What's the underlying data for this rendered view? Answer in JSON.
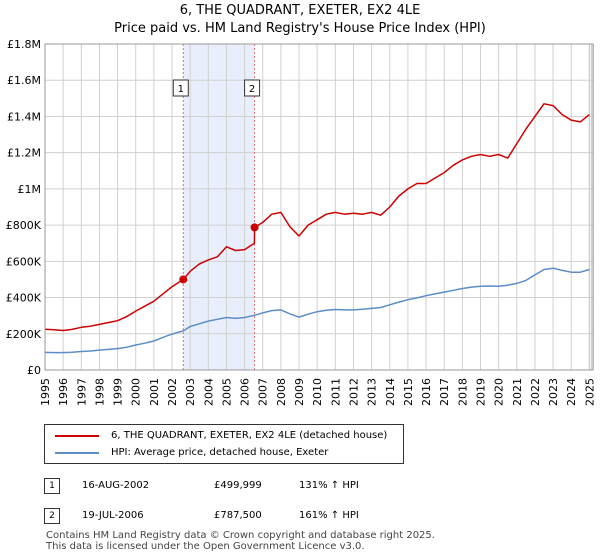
{
  "title_line1": "6, THE QUADRANT, EXETER, EX2 4LE",
  "title_line2": "Price paid vs. HM Land Registry's House Price Index (HPI)",
  "colors": {
    "property": "#cc0000",
    "hpi": "#5b8ec9",
    "shade": "#e8eefb",
    "grid": "#d0d0d0",
    "vline": "#e07070"
  },
  "chart_data": {
    "type": "line",
    "xlim": [
      1995,
      2025.2
    ],
    "ylim": [
      0,
      1800000
    ],
    "yticks": [
      0,
      200000,
      400000,
      600000,
      800000,
      1000000,
      1200000,
      1400000,
      1600000,
      1800000
    ],
    "ytick_labels": [
      "£0",
      "£200K",
      "£400K",
      "£600K",
      "£800K",
      "£1M",
      "£1.2M",
      "£1.4M",
      "£1.6M",
      "£1.8M"
    ],
    "xticks": [
      "1995",
      "1996",
      "1997",
      "1998",
      "1999",
      "2000",
      "2001",
      "2002",
      "2003",
      "2004",
      "2005",
      "2006",
      "2007",
      "2008",
      "2009",
      "2010",
      "2011",
      "2012",
      "2013",
      "2014",
      "2015",
      "2016",
      "2017",
      "2018",
      "2019",
      "2020",
      "2021",
      "2022",
      "2023",
      "2024",
      "2025"
    ],
    "shaded_region": [
      2002.62,
      2006.55
    ],
    "series": [
      {
        "name": "6, THE QUADRANT, EXETER, EX2 4LE (detached house)",
        "x": [
          1995,
          1995.5,
          1996,
          1996.5,
          1997,
          1997.5,
          1998,
          1998.5,
          1999,
          1999.5,
          2000,
          2000.5,
          2001,
          2001.5,
          2002,
          2002.62,
          2003,
          2003.5,
          2004,
          2004.5,
          2005,
          2005.5,
          2006,
          2006.54,
          2006.55,
          2007,
          2007.5,
          2008,
          2008.5,
          2009,
          2009.5,
          2010,
          2010.5,
          2011,
          2011.5,
          2012,
          2012.5,
          2013,
          2013.5,
          2014,
          2014.5,
          2015,
          2015.5,
          2016,
          2016.5,
          2017,
          2017.5,
          2018,
          2018.5,
          2019,
          2019.5,
          2020,
          2020.5,
          2021,
          2021.5,
          2022,
          2022.5,
          2023,
          2023.5,
          2024,
          2024.5,
          2025
        ],
        "values": [
          225000,
          222000,
          218000,
          224000,
          236000,
          242000,
          252000,
          262000,
          272000,
          295000,
          325000,
          352000,
          380000,
          420000,
          460000,
          499999,
          545000,
          585000,
          608000,
          625000,
          680000,
          660000,
          665000,
          700000,
          787500,
          815000,
          860000,
          870000,
          790000,
          740000,
          800000,
          830000,
          860000,
          870000,
          860000,
          865000,
          860000,
          870000,
          855000,
          900000,
          960000,
          1000000,
          1030000,
          1030000,
          1060000,
          1090000,
          1130000,
          1160000,
          1180000,
          1190000,
          1180000,
          1190000,
          1170000,
          1250000,
          1330000,
          1400000,
          1470000,
          1460000,
          1410000,
          1380000,
          1370000,
          1410000
        ]
      },
      {
        "name": "HPI: Average price, detached house, Exeter",
        "x": [
          1995,
          1995.5,
          1996,
          1996.5,
          1997,
          1997.5,
          1998,
          1998.5,
          1999,
          1999.5,
          2000,
          2000.5,
          2001,
          2001.5,
          2002,
          2002.62,
          2003,
          2003.5,
          2004,
          2004.5,
          2005,
          2005.5,
          2006,
          2006.55,
          2007,
          2007.5,
          2008,
          2008.5,
          2009,
          2009.5,
          2010,
          2010.5,
          2011,
          2011.5,
          2012,
          2012.5,
          2013,
          2013.5,
          2014,
          2014.5,
          2015,
          2015.5,
          2016,
          2016.5,
          2017,
          2017.5,
          2018,
          2018.5,
          2019,
          2019.5,
          2020,
          2020.5,
          2021,
          2021.5,
          2022,
          2022.5,
          2023,
          2023.5,
          2024,
          2024.5,
          2025
        ],
        "values": [
          97000,
          96000,
          96000,
          98000,
          102000,
          105000,
          110000,
          114000,
          118000,
          126000,
          138000,
          148000,
          160000,
          180000,
          198000,
          216000,
          240000,
          255000,
          270000,
          280000,
          290000,
          285000,
          290000,
          302000,
          315000,
          328000,
          332000,
          310000,
          292000,
          308000,
          322000,
          330000,
          334000,
          332000,
          332000,
          335000,
          340000,
          345000,
          360000,
          375000,
          388000,
          398000,
          410000,
          420000,
          430000,
          440000,
          450000,
          458000,
          462000,
          464000,
          462000,
          468000,
          478000,
          495000,
          525000,
          555000,
          562000,
          550000,
          540000,
          540000,
          555000
        ]
      }
    ],
    "markers": [
      {
        "label": "1",
        "x": 2002.62,
        "y": 499999
      },
      {
        "label": "2",
        "x": 2006.55,
        "y": 787500
      }
    ]
  },
  "legend": {
    "property_label": "6, THE QUADRANT, EXETER, EX2 4LE (detached house)",
    "hpi_label": "HPI: Average price, detached house, Exeter"
  },
  "transactions": [
    {
      "num": "1",
      "date": "16-AUG-2002",
      "price": "£499,999",
      "hpi": "131% ↑ HPI"
    },
    {
      "num": "2",
      "date": "19-JUL-2006",
      "price": "£787,500",
      "hpi": "161% ↑ HPI"
    }
  ],
  "footer_line1": "Contains HM Land Registry data © Crown copyright and database right 2025.",
  "footer_line2": "This data is licensed under the Open Government Licence v3.0."
}
